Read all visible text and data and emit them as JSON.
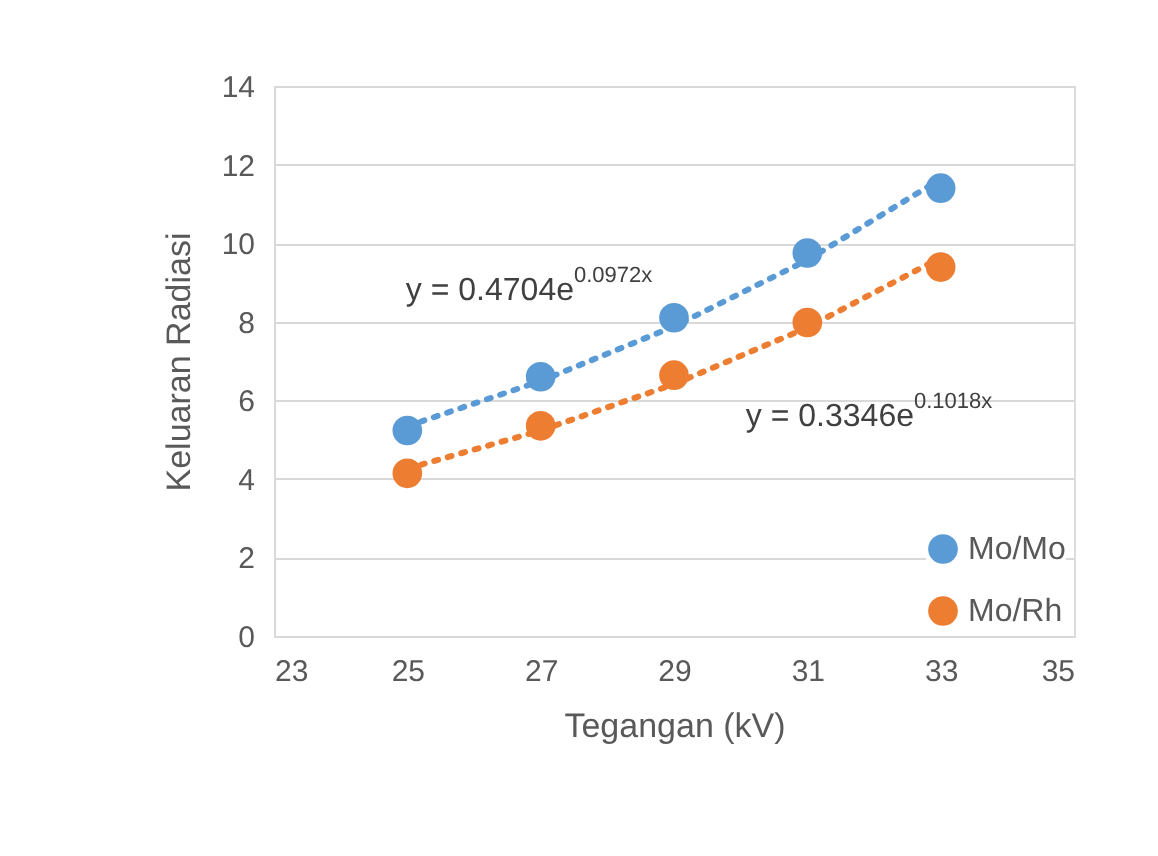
{
  "chart_data": {
    "type": "scatter",
    "xlabel": "Tegangan (kV)",
    "ylabel": "Keluaran Radiasi",
    "x": [
      25,
      27,
      29,
      31,
      33
    ],
    "series": [
      {
        "name": "Mo/Mo",
        "color": "#5b9bd5",
        "values": [
          5.23,
          6.6,
          8.1,
          9.75,
          11.4
        ]
      },
      {
        "name": "Mo/Rh",
        "color": "#ed7d31",
        "values": [
          4.14,
          5.35,
          6.64,
          7.98,
          9.39
        ]
      },
      {
        "type": "line",
        "line_style": "dotted",
        "marker": "none",
        "color": "#5b9bd5",
        "x": [
          25,
          27,
          29,
          31,
          33
        ],
        "values": [
          5.34,
          6.49,
          7.88,
          9.57,
          11.63
        ]
      },
      {
        "type": "line",
        "line_style": "dotted",
        "marker": "none",
        "color": "#ed7d31",
        "x": [
          25,
          27,
          29,
          31,
          33
        ],
        "values": [
          4.26,
          5.23,
          6.41,
          7.85,
          9.63
        ]
      }
    ],
    "annotations": [
      "y = 0.4704e$^{0.0972x}$",
      "y = 0.3346e$^{0.1018x}$"
    ],
    "xlim": [
      23,
      35
    ],
    "xticks": [
      23,
      25,
      27,
      29,
      31,
      33,
      35
    ],
    "ylim": [
      0,
      14
    ],
    "yticks": [
      0,
      2,
      4,
      6,
      8,
      10,
      12,
      14
    ],
    "grid": "y",
    "legend": "bottom right",
    "marker": "circle"
  }
}
